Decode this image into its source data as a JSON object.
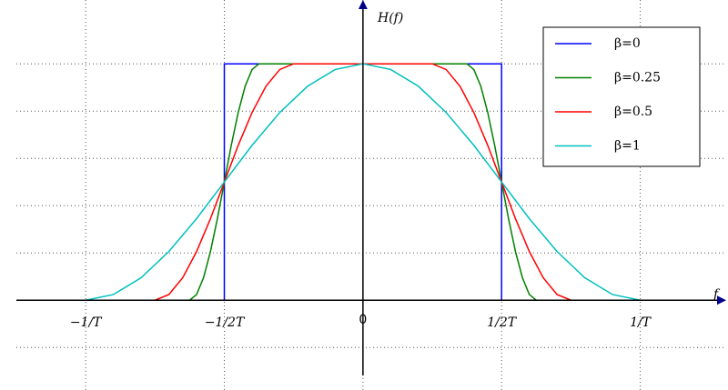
{
  "chart_data": {
    "type": "line",
    "x_label": "f",
    "y_label": "H(f)",
    "xlim": [
      -1.25,
      1.31
    ],
    "ylim": [
      -0.38,
      1.27
    ],
    "xticks": [
      {
        "value": -1,
        "label": "−1/T"
      },
      {
        "value": -0.5,
        "label": "−1/2T"
      },
      0,
      {
        "value": 0.5,
        "label": "1/2T"
      },
      {
        "value": 1,
        "label": "1/T"
      }
    ],
    "yticks": [
      -0.2,
      0,
      0.2,
      0.4,
      0.6,
      0.8,
      1
    ],
    "grid": true,
    "legend": "upper right",
    "series": [
      {
        "name": "β=0",
        "color": "#0000ff",
        "x": [
          -1.25,
          -0.5,
          -0.5,
          0.5,
          0.5,
          1.25
        ],
        "values": [
          0,
          0,
          1,
          1,
          0,
          0
        ]
      },
      {
        "name": "β=0.25",
        "color": "#008000",
        "x": [
          -1.25,
          -0.625,
          -0.6,
          -0.575,
          -0.55,
          -0.525,
          -0.5,
          -0.475,
          -0.45,
          -0.425,
          -0.4,
          -0.375,
          0.375,
          0.4,
          0.425,
          0.45,
          0.475,
          0.5,
          0.525,
          0.55,
          0.575,
          0.6,
          0.625,
          1.25
        ],
        "values": [
          0,
          0,
          0.024,
          0.095,
          0.206,
          0.345,
          0.5,
          0.655,
          0.794,
          0.905,
          0.976,
          1,
          1,
          0.976,
          0.905,
          0.794,
          0.655,
          0.5,
          0.345,
          0.206,
          0.095,
          0.024,
          0,
          0
        ]
      },
      {
        "name": "β=0.5",
        "color": "#ff0000",
        "x": [
          -1.25,
          -0.75,
          -0.7,
          -0.65,
          -0.6,
          -0.55,
          -0.5,
          -0.45,
          -0.4,
          -0.35,
          -0.3,
          -0.25,
          0.25,
          0.3,
          0.35,
          0.4,
          0.45,
          0.5,
          0.55,
          0.6,
          0.65,
          0.7,
          0.75,
          1.25
        ],
        "values": [
          0,
          0,
          0.024,
          0.095,
          0.206,
          0.345,
          0.5,
          0.655,
          0.794,
          0.905,
          0.976,
          1,
          1,
          0.976,
          0.905,
          0.794,
          0.655,
          0.5,
          0.345,
          0.206,
          0.095,
          0.024,
          0,
          0
        ]
      },
      {
        "name": "β=1",
        "color": "#00bfbf",
        "x": [
          -1.25,
          -1,
          -0.9,
          -0.8,
          -0.7,
          -0.6,
          -0.5,
          -0.4,
          -0.3,
          -0.2,
          -0.1,
          0,
          0.1,
          0.2,
          0.3,
          0.4,
          0.5,
          0.6,
          0.7,
          0.8,
          0.9,
          1,
          1.25
        ],
        "values": [
          0,
          0,
          0.024,
          0.095,
          0.206,
          0.345,
          0.5,
          0.655,
          0.794,
          0.905,
          0.976,
          1,
          0.976,
          0.905,
          0.794,
          0.655,
          0.5,
          0.345,
          0.206,
          0.095,
          0.024,
          0,
          0
        ]
      }
    ]
  }
}
